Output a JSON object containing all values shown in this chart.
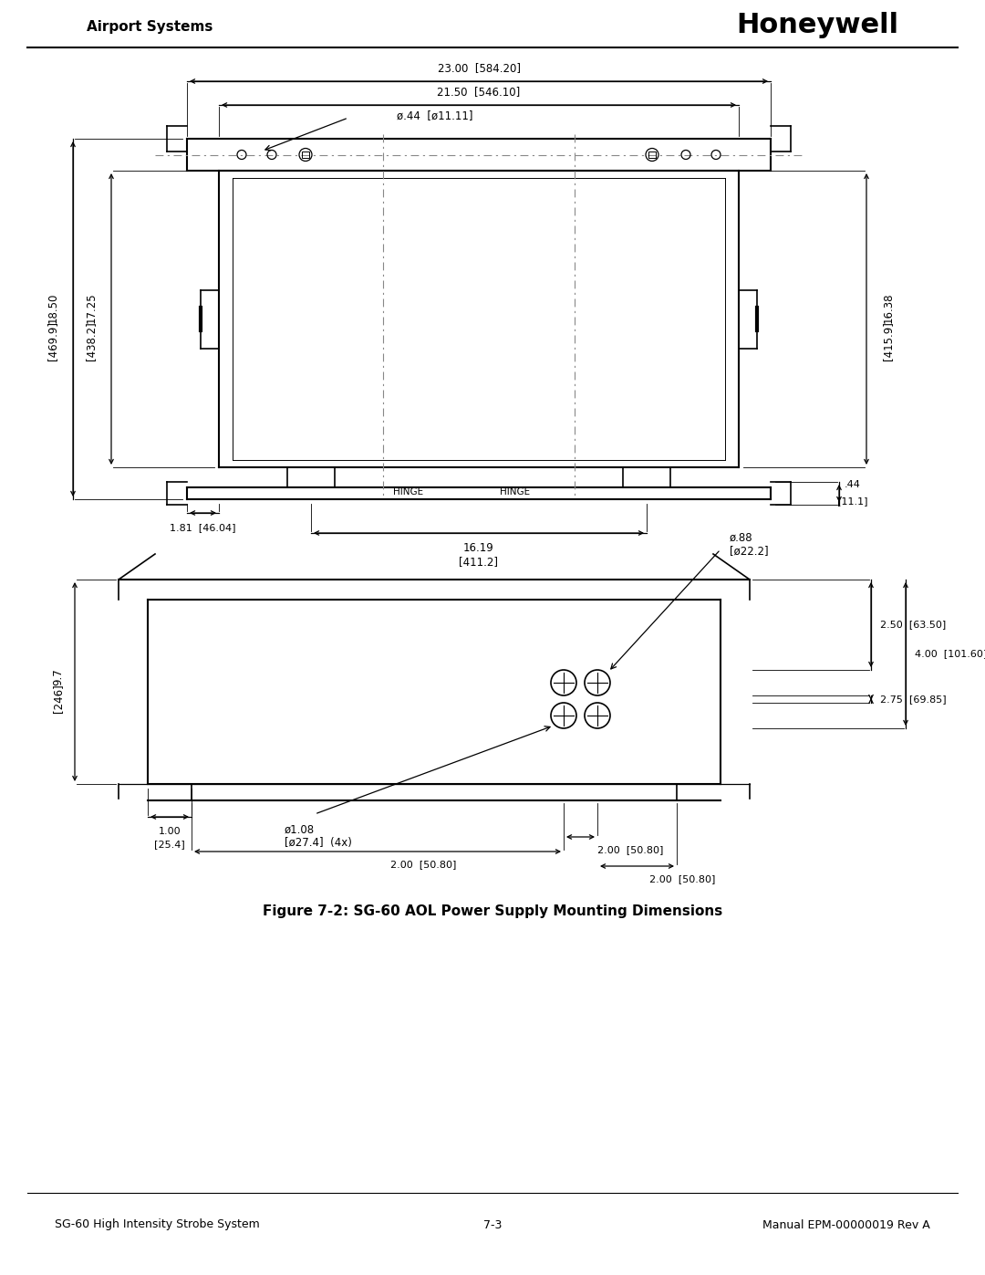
{
  "title_left": "Airport Systems",
  "title_right": "Honeywell",
  "footer_left": "SG-60 High Intensity Strobe System",
  "footer_center": "7-3",
  "footer_right": "Manual EPM-00000019 Rev A",
  "figure_caption": "Figure 7-2: SG-60 AOL Power Supply Mounting Dimensions",
  "bg_color": "#ffffff",
  "line_color": "#000000",
  "dim_color": "#000000",
  "centerline_color": "#555555"
}
